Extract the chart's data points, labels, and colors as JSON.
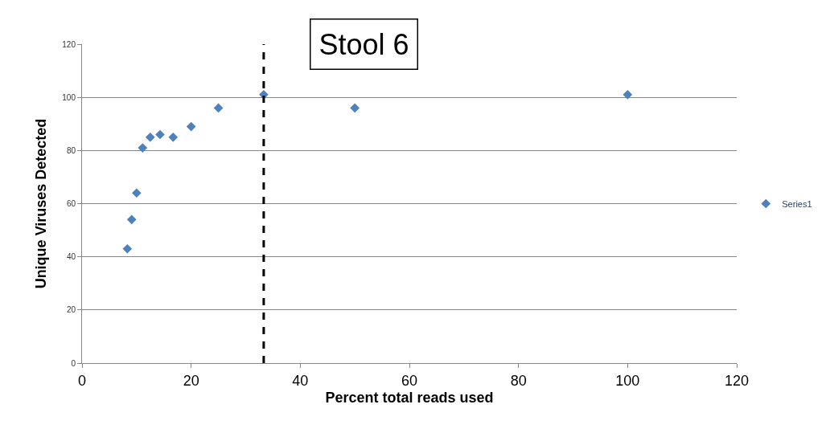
{
  "chart_data": {
    "type": "scatter",
    "title": "Stool 6",
    "xlabel": "Percent total reads used",
    "ylabel": "Unique Viruses Detected",
    "series": [
      {
        "name": "Series1",
        "color": "#4f81bd",
        "x": [
          8.3,
          9.1,
          10,
          11.1,
          12.5,
          14.3,
          16.7,
          20,
          25,
          33.3,
          50,
          100
        ],
        "values": [
          43,
          54,
          64,
          81,
          85,
          86,
          85,
          89,
          96,
          101,
          96,
          101
        ]
      }
    ],
    "xlim": [
      0,
      120
    ],
    "xticks": [
      0,
      20,
      40,
      60,
      80,
      100,
      120
    ],
    "ylim": [
      0,
      120
    ],
    "yticks": [
      0,
      20,
      40,
      60,
      80,
      100,
      120
    ],
    "ref_lines": [
      {
        "axis": "x",
        "value": 33.3,
        "color": "#000000",
        "line_style": "dashed"
      }
    ],
    "grid": "y",
    "legend": "right",
    "marker": "diamond"
  }
}
